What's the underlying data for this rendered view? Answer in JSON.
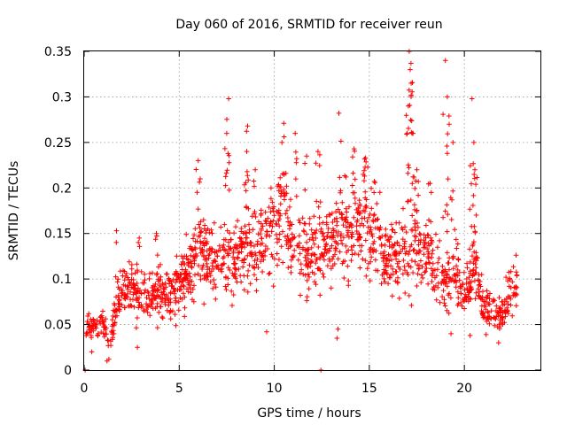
{
  "chart_data": {
    "type": "scatter",
    "title": "Day 060 of 2016, SRMTID for receiver reun",
    "xlabel": "GPS time / hours",
    "ylabel": "SRMTID / TECUs",
    "xlim": [
      0,
      24
    ],
    "ylim": [
      0,
      0.35
    ],
    "x_ticks": [
      0,
      5,
      10,
      15,
      20
    ],
    "x_tick_labels": [
      "0",
      "5",
      "10",
      "15",
      "20"
    ],
    "y_ticks": [
      0,
      0.05,
      0.1,
      0.15,
      0.2,
      0.25,
      0.3,
      0.35
    ],
    "y_tick_labels": [
      "0",
      "0.05",
      "0.1",
      "0.15",
      "0.2",
      "0.25",
      "0.3",
      "0.35"
    ],
    "grid": true,
    "legend": "none",
    "marker": "plus",
    "color": "#ff0000",
    "trend": [
      {
        "x": 0.1,
        "y": 0.045
      },
      {
        "x": 1.0,
        "y": 0.05
      },
      {
        "x": 1.3,
        "y": 0.03
      },
      {
        "x": 1.8,
        "y": 0.08
      },
      {
        "x": 2.5,
        "y": 0.09
      },
      {
        "x": 3.0,
        "y": 0.08
      },
      {
        "x": 4.0,
        "y": 0.08
      },
      {
        "x": 5.0,
        "y": 0.09
      },
      {
        "x": 6.0,
        "y": 0.13
      },
      {
        "x": 7.0,
        "y": 0.12
      },
      {
        "x": 8.0,
        "y": 0.13
      },
      {
        "x": 9.0,
        "y": 0.13
      },
      {
        "x": 10.3,
        "y": 0.17
      },
      {
        "x": 11.0,
        "y": 0.14
      },
      {
        "x": 12.0,
        "y": 0.13
      },
      {
        "x": 13.0,
        "y": 0.14
      },
      {
        "x": 14.0,
        "y": 0.16
      },
      {
        "x": 15.0,
        "y": 0.17
      },
      {
        "x": 15.5,
        "y": 0.14
      },
      {
        "x": 16.0,
        "y": 0.12
      },
      {
        "x": 17.0,
        "y": 0.13
      },
      {
        "x": 18.0,
        "y": 0.14
      },
      {
        "x": 18.5,
        "y": 0.11
      },
      {
        "x": 19.0,
        "y": 0.09
      },
      {
        "x": 19.5,
        "y": 0.12
      },
      {
        "x": 20.0,
        "y": 0.08
      },
      {
        "x": 20.5,
        "y": 0.12
      },
      {
        "x": 21.0,
        "y": 0.07
      },
      {
        "x": 22.0,
        "y": 0.06
      },
      {
        "x": 22.5,
        "y": 0.09
      }
    ],
    "spikes": [
      {
        "x": 7.6,
        "y": 0.298
      },
      {
        "x": 7.5,
        "y": 0.26
      },
      {
        "x": 8.6,
        "y": 0.268
      },
      {
        "x": 8.55,
        "y": 0.24
      },
      {
        "x": 6.0,
        "y": 0.23
      },
      {
        "x": 10.5,
        "y": 0.271
      },
      {
        "x": 10.4,
        "y": 0.25
      },
      {
        "x": 11.1,
        "y": 0.26
      },
      {
        "x": 13.4,
        "y": 0.282
      },
      {
        "x": 14.2,
        "y": 0.243
      },
      {
        "x": 14.8,
        "y": 0.233
      },
      {
        "x": 17.1,
        "y": 0.35
      },
      {
        "x": 17.15,
        "y": 0.33
      },
      {
        "x": 17.2,
        "y": 0.315
      },
      {
        "x": 17.05,
        "y": 0.29
      },
      {
        "x": 17.3,
        "y": 0.26
      },
      {
        "x": 17.5,
        "y": 0.22
      },
      {
        "x": 18.2,
        "y": 0.205
      },
      {
        "x": 19.0,
        "y": 0.34
      },
      {
        "x": 19.1,
        "y": 0.3
      },
      {
        "x": 19.2,
        "y": 0.27
      },
      {
        "x": 19.4,
        "y": 0.25
      },
      {
        "x": 20.4,
        "y": 0.298
      },
      {
        "x": 20.5,
        "y": 0.25
      },
      {
        "x": 20.55,
        "y": 0.22
      },
      {
        "x": 1.7,
        "y": 0.153
      },
      {
        "x": 3.8,
        "y": 0.15
      },
      {
        "x": 2.9,
        "y": 0.145
      },
      {
        "x": 9.0,
        "y": 0.22
      },
      {
        "x": 12.3,
        "y": 0.24
      },
      {
        "x": 11.7,
        "y": 0.235
      }
    ],
    "lows": [
      {
        "x": 0.05,
        "y": 0.0
      },
      {
        "x": 12.45,
        "y": 0.0
      },
      {
        "x": 1.2,
        "y": 0.01
      },
      {
        "x": 1.3,
        "y": 0.012
      },
      {
        "x": 2.8,
        "y": 0.025
      },
      {
        "x": 9.6,
        "y": 0.042
      },
      {
        "x": 13.3,
        "y": 0.035
      },
      {
        "x": 13.35,
        "y": 0.045
      },
      {
        "x": 20.3,
        "y": 0.038
      },
      {
        "x": 21.8,
        "y": 0.03
      },
      {
        "x": 19.3,
        "y": 0.04
      },
      {
        "x": 0.4,
        "y": 0.02
      }
    ],
    "n_points": 1600
  }
}
